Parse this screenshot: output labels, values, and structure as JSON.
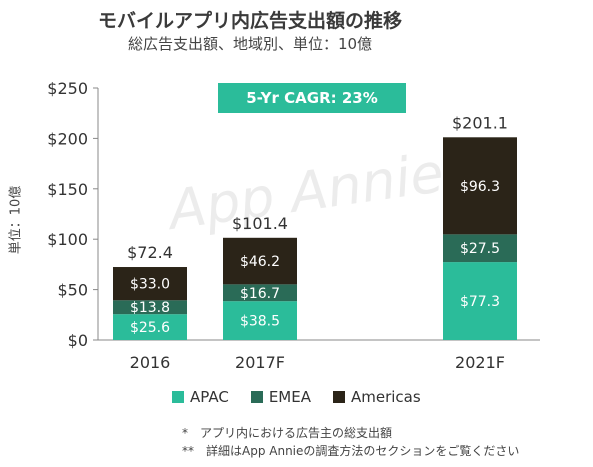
{
  "title": "モバイルアプリ内広告支出額の推移",
  "subtitle": "総広告支出額、地域別、単位：10億",
  "watermark": "App Annie",
  "cagr_label": "5-Yr CAGR: 23%",
  "colors": {
    "APAC": "#2bbc9a",
    "EMEA": "#2a6b57",
    "Americas": "#2b2418",
    "cagr_bg": "#2bbc9a"
  },
  "chart_data": {
    "type": "bar",
    "stacked": true,
    "categories": [
      "2016",
      "2017F",
      "2021F"
    ],
    "series": [
      {
        "name": "APAC",
        "values": [
          25.6,
          38.5,
          77.3
        ],
        "labels": [
          "$25.6",
          "$38.5",
          "$77.3"
        ]
      },
      {
        "name": "EMEA",
        "values": [
          13.8,
          16.7,
          27.5
        ],
        "labels": [
          "$13.8",
          "$16.7",
          "$27.5"
        ]
      },
      {
        "name": "Americas",
        "values": [
          33.0,
          46.2,
          96.3
        ],
        "labels": [
          "$33.0",
          "$46.2",
          "$96.3"
        ]
      }
    ],
    "totals": [
      "$72.4",
      "$101.4",
      "$201.1"
    ],
    "ylabel": "単位：10億",
    "ylim": [
      0,
      250
    ],
    "yticks": [
      0,
      50,
      100,
      150,
      200,
      250
    ],
    "ytick_labels": [
      "$0",
      "$50",
      "$100",
      "$150",
      "$200",
      "$250"
    ],
    "grid": false,
    "legend": "bottom"
  },
  "notes": [
    "*　アプリ内における広告主の総支出額",
    "**　詳細はApp Annieの調査方法のセクションをご覧ください"
  ]
}
